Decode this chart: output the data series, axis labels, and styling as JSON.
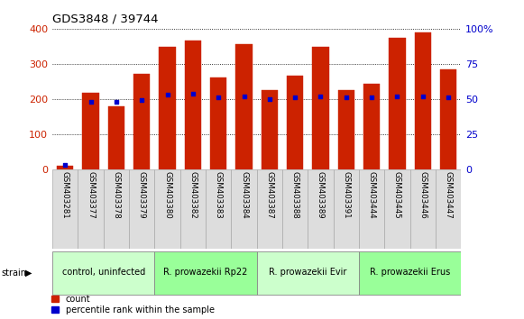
{
  "title": "GDS3848 / 39744",
  "samples": [
    "GSM403281",
    "GSM403377",
    "GSM403378",
    "GSM403379",
    "GSM403380",
    "GSM403382",
    "GSM403383",
    "GSM403384",
    "GSM403387",
    "GSM403388",
    "GSM403389",
    "GSM403391",
    "GSM403444",
    "GSM403445",
    "GSM403446",
    "GSM403447"
  ],
  "counts": [
    10,
    218,
    178,
    270,
    348,
    365,
    260,
    355,
    225,
    265,
    348,
    225,
    242,
    375,
    390,
    283
  ],
  "percentiles": [
    3,
    48,
    48,
    49,
    53,
    54,
    51,
    52,
    50,
    51,
    52,
    51,
    51,
    52,
    52,
    51
  ],
  "groups": [
    {
      "label": "control, uninfected",
      "start": 0,
      "end": 4,
      "color": "#ccffcc"
    },
    {
      "label": "R. prowazekii Rp22",
      "start": 4,
      "end": 8,
      "color": "#99ff99"
    },
    {
      "label": "R. prowazekii Evir",
      "start": 8,
      "end": 12,
      "color": "#ccffcc"
    },
    {
      "label": "R. prowazekii Erus",
      "start": 12,
      "end": 16,
      "color": "#99ff99"
    }
  ],
  "bar_color": "#cc2200",
  "dot_color": "#0000cc",
  "left_axis_color": "#cc2200",
  "right_axis_color": "#0000cc",
  "left_ylim": [
    0,
    400
  ],
  "right_ylim": [
    0,
    100
  ],
  "left_ticks": [
    0,
    100,
    200,
    300,
    400
  ],
  "right_ticks": [
    0,
    25,
    50,
    75,
    100
  ],
  "right_tick_labels": [
    "0",
    "25",
    "50",
    "75",
    "100%"
  ],
  "grid_color": "#000000",
  "bg_color": "#ffffff",
  "sample_box_color": "#dddddd",
  "sample_box_edge": "#aaaaaa"
}
